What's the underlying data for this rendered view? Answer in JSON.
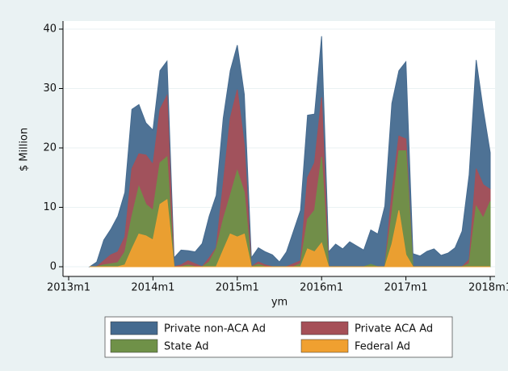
{
  "chart_data": {
    "type": "area",
    "y_label": "$ Million",
    "x_label": "ym",
    "x": [
      "2013m4",
      "2013m5",
      "2013m6",
      "2013m7",
      "2013m8",
      "2013m9",
      "2013m10",
      "2013m11",
      "2013m12",
      "2014m1",
      "2014m2",
      "2014m3",
      "2014m4",
      "2014m5",
      "2014m6",
      "2014m7",
      "2014m8",
      "2014m9",
      "2014m10",
      "2014m11",
      "2014m12",
      "2015m1",
      "2015m2",
      "2015m3",
      "2015m4",
      "2015m5",
      "2015m6",
      "2015m7",
      "2015m8",
      "2015m9",
      "2015m10",
      "2015m11",
      "2015m12",
      "2016m1",
      "2016m2",
      "2016m3",
      "2016m4",
      "2016m5",
      "2016m6",
      "2016m7",
      "2016m8",
      "2016m9",
      "2016m10",
      "2016m11",
      "2016m12",
      "2017m1",
      "2017m2",
      "2017m3",
      "2017m4",
      "2017m5",
      "2017m6",
      "2017m7",
      "2017m8",
      "2017m9",
      "2017m10",
      "2017m11",
      "2017m12",
      "2018m1"
    ],
    "series": [
      {
        "name": "Private non-ACA Ad",
        "color": "#456a8f",
        "values": [
          0,
          0.8,
          4.5,
          6.3,
          8.5,
          12.5,
          26.5,
          27.3,
          24.2,
          23,
          33,
          34.6,
          1.5,
          2.8,
          2.7,
          2.5,
          3.9,
          8.5,
          12,
          25,
          33,
          37.3,
          29,
          1.5,
          3.2,
          2.5,
          2,
          0.8,
          2.5,
          6,
          9.5,
          25.5,
          25.7,
          38.8,
          2.5,
          3.8,
          3,
          4.2,
          3.5,
          2.8,
          6.2,
          5.5,
          10.2,
          27.5,
          33,
          34.5,
          2.2,
          1.8,
          2.6,
          3,
          1.9,
          2.3,
          3.2,
          6,
          15.5,
          34.8,
          26.5,
          19.2
        ]
      },
      {
        "name": "Private ACA Ad",
        "color": "#a55058",
        "values": [
          0,
          0,
          1,
          2,
          2.5,
          5,
          16.5,
          19,
          18.8,
          17.2,
          26.5,
          28.8,
          0,
          0.3,
          1,
          0.5,
          0,
          1.5,
          3.2,
          14,
          25,
          29.8,
          20.5,
          0,
          0.8,
          0.3,
          0,
          0,
          0,
          0.5,
          1,
          15,
          17.5,
          28.5,
          0,
          0,
          0,
          0,
          0,
          0,
          0,
          0,
          0,
          12.5,
          22,
          21.5,
          0,
          0,
          0,
          0,
          0,
          0,
          0,
          0,
          1.2,
          16.5,
          13.8,
          13
        ]
      },
      {
        "name": "State Ad",
        "color": "#6f9148",
        "values": [
          0,
          0,
          0.3,
          0.5,
          0.7,
          2.5,
          8.5,
          13.5,
          10.5,
          9.5,
          17.5,
          18.5,
          0,
          0,
          0.3,
          0,
          0,
          0.8,
          3,
          8,
          12,
          16.2,
          12.5,
          0,
          0.4,
          0,
          0,
          0,
          0,
          0,
          0.5,
          8,
          9.5,
          18.5,
          0,
          0,
          0,
          0,
          0,
          0,
          0.4,
          0,
          0,
          9,
          19.5,
          19.5,
          0,
          0,
          0,
          0,
          0,
          0,
          0,
          0,
          0.5,
          10.2,
          8.2,
          11
        ]
      },
      {
        "name": "Federal Ad",
        "color": "#f0a030",
        "values": [
          0,
          0,
          0,
          0,
          0,
          0.3,
          3,
          5.5,
          5.2,
          4.5,
          10.5,
          11.3,
          0,
          0,
          0,
          0,
          0,
          0,
          0,
          2.8,
          5.5,
          5,
          5.5,
          0,
          0,
          0,
          0,
          0,
          0,
          0,
          0,
          3,
          2.5,
          4,
          0,
          0,
          0,
          0,
          0,
          0,
          0,
          0,
          0,
          3.8,
          9.5,
          2,
          0,
          0,
          0,
          0,
          0,
          0,
          0,
          0,
          0,
          0,
          0,
          0
        ]
      }
    ],
    "xlim": [
      "2013m1",
      "2018m1"
    ],
    "xticks": [
      "2013m1",
      "2014m1",
      "2015m1",
      "2016m1",
      "2017m1",
      "2018m1"
    ],
    "ylim": [
      0,
      40
    ],
    "yticks": [
      0,
      10,
      20,
      30,
      40
    ],
    "grid": true
  }
}
